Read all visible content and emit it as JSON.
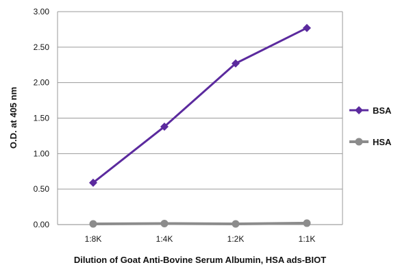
{
  "chart_data": {
    "type": "line",
    "xlabel": "Dilution of Goat Anti-Bovine Serum Albumin, HSA ads-BIOT",
    "ylabel": "O.D. at 405 nm",
    "categories": [
      "1:8K",
      "1:4K",
      "1:2K",
      "1:1K"
    ],
    "ylim": [
      0,
      3
    ],
    "yticks": [
      "0.00",
      "0.50",
      "1.00",
      "1.50",
      "2.00",
      "2.50",
      "3.00"
    ],
    "grid": "horizontal",
    "legend_position": "right",
    "series": [
      {
        "name": "BSA",
        "values": [
          0.59,
          1.38,
          2.27,
          2.77
        ],
        "color": "#5b2a9e",
        "marker": "diamond"
      },
      {
        "name": "HSA",
        "values": [
          0.01,
          0.015,
          0.01,
          0.02
        ],
        "color": "#8c8c8c",
        "marker": "circle"
      }
    ]
  }
}
